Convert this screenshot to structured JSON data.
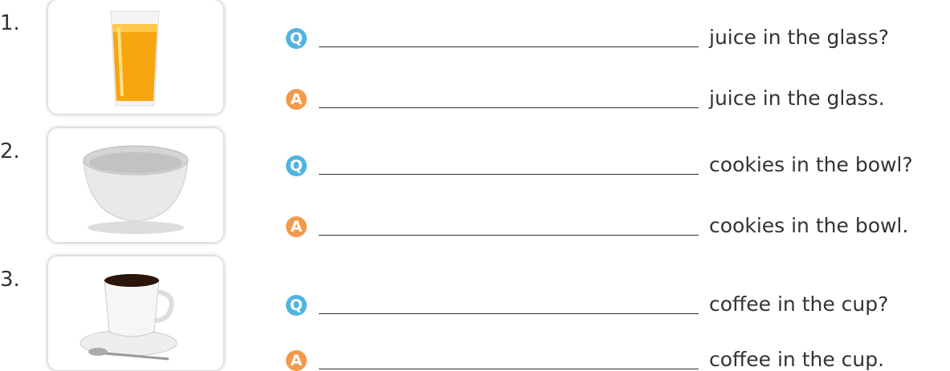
{
  "items": [
    {
      "number": "1.",
      "question": {
        "marker": "Q",
        "text": "juice in the glass?"
      },
      "answer": {
        "marker": "A",
        "text": "juice in the glass."
      }
    },
    {
      "number": "2.",
      "question": {
        "marker": "Q",
        "text": "cookies in the bowl?"
      },
      "answer": {
        "marker": "A",
        "text": "cookies in the bowl."
      }
    },
    {
      "number": "3.",
      "question": {
        "marker": "Q",
        "text": "coffee in the cup?"
      },
      "answer": {
        "marker": "A",
        "text": "coffee in the cup."
      }
    }
  ]
}
